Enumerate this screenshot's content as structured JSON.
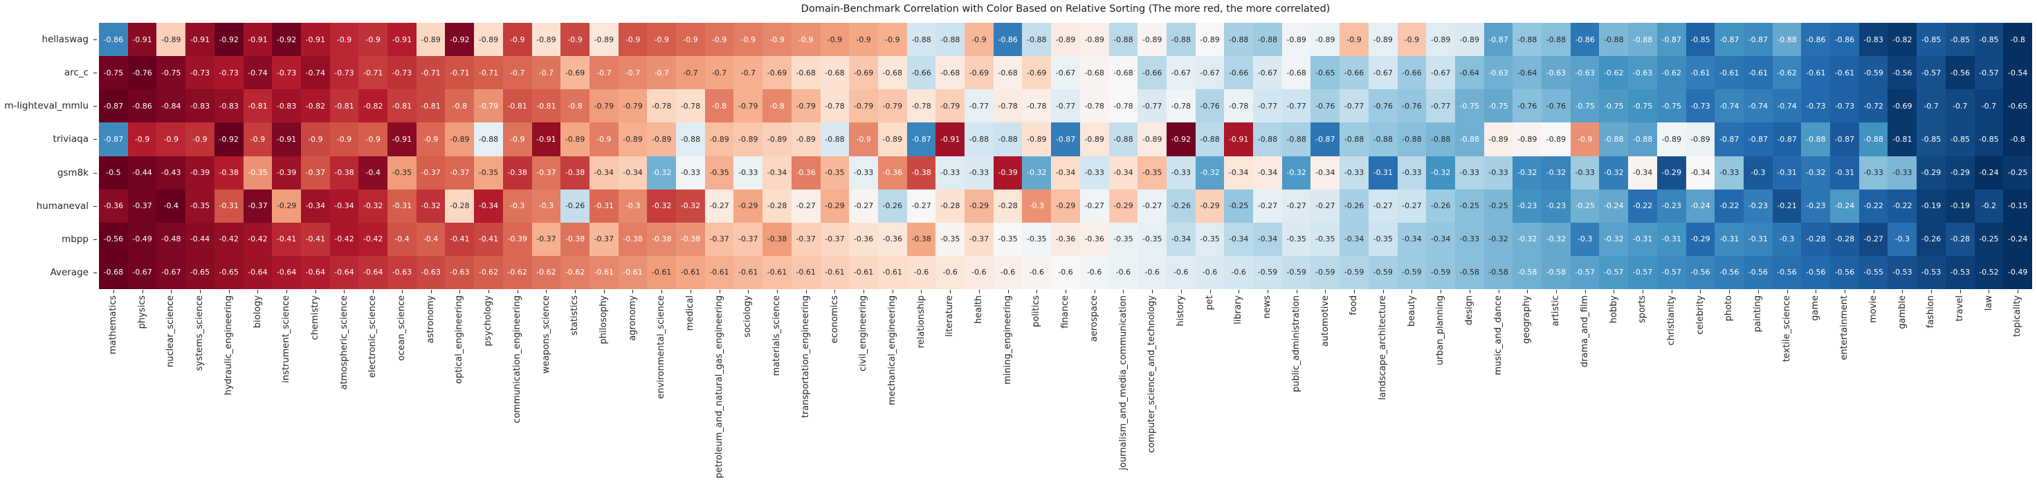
{
  "title": "Domain-Benchmark Correlation with Color Based on Relative Sorting (The more red, the more correlated)",
  "colors": {
    "background": "#ffffff",
    "text_dark": "#262626",
    "text_light": "#ffffff",
    "rdbu_anchors": [
      "#67001f",
      "#b2182b",
      "#d6604d",
      "#f4a582",
      "#fddbc7",
      "#f7f7f7",
      "#d1e5f0",
      "#92c5de",
      "#4393c3",
      "#2166ac",
      "#053061"
    ],
    "color_rule": "per-row rank-based RdBu: most negative correlation = darkest red, least negative = darkest blue"
  },
  "chart_data": {
    "type": "heatmap",
    "title": "Domain-Benchmark Correlation with Color Based on Relative Sorting (The more red, the more correlated)",
    "xlabel": "",
    "ylabel": "",
    "grid": false,
    "legend": false,
    "x_tick_rotation": 90,
    "value_range": [
      -0.92,
      -0.15
    ],
    "rows": [
      "hellaswag",
      "arc_c",
      "m-lighteval_mmlu",
      "triviaqa",
      "gsm8k",
      "humaneval",
      "mbpp",
      "Average"
    ],
    "columns": [
      "mathematics",
      "physics",
      "nuclear_science",
      "systems_science",
      "hydraulic_engineering",
      "biology",
      "instrument_science",
      "chemistry",
      "atmospheric_science",
      "electronic_science",
      "ocean_science",
      "astronomy",
      "optical_engineering",
      "psychology",
      "communication_engineering",
      "weapons_science",
      "statistics",
      "philosophy",
      "agronomy",
      "environmental_science",
      "medical",
      "petroleum_and_natural_gas_engineering",
      "sociology",
      "materials_science",
      "transportation_engineering",
      "economics",
      "civil_engineering",
      "mechanical_engineering",
      "relationship",
      "literature",
      "health",
      "mining_engineering",
      "politics",
      "finance",
      "aerospace",
      "journalism_and_media_communication",
      "computer_science_and_technology",
      "history",
      "pet",
      "library",
      "news",
      "public_administration",
      "automotive",
      "food",
      "landscape_architecture",
      "beauty",
      "urban_planning",
      "design",
      "music_and_dance",
      "geography",
      "artistic",
      "drama_and_film",
      "hobby",
      "sports",
      "christianity",
      "celebrity",
      "photo",
      "painting",
      "textile_science",
      "game",
      "entertainment",
      "movie",
      "gamble",
      "fashion",
      "travel",
      "law",
      "topicality"
    ],
    "values": [
      [
        -0.86,
        -0.91,
        -0.89,
        -0.91,
        -0.92,
        -0.91,
        -0.92,
        -0.91,
        -0.9,
        -0.9,
        -0.91,
        -0.89,
        -0.92,
        -0.89,
        -0.9,
        -0.89,
        -0.9,
        -0.89,
        -0.9,
        -0.9,
        -0.9,
        -0.9,
        -0.9,
        -0.9,
        -0.9,
        -0.9,
        -0.9,
        -0.9,
        -0.88,
        -0.88,
        -0.9,
        -0.86,
        -0.88,
        -0.89,
        -0.89,
        -0.88,
        -0.89,
        -0.88,
        -0.89,
        -0.88,
        -0.88,
        -0.89,
        -0.89,
        -0.9,
        -0.89,
        -0.9,
        -0.89,
        -0.89,
        -0.87,
        -0.88,
        -0.88,
        -0.86,
        -0.88,
        -0.88,
        -0.87,
        -0.85,
        -0.87,
        -0.87,
        -0.88,
        -0.86,
        -0.86,
        -0.83,
        -0.82,
        -0.85,
        -0.85,
        -0.85,
        -0.8
      ],
      [
        -0.75,
        -0.76,
        -0.75,
        -0.73,
        -0.73,
        -0.74,
        -0.73,
        -0.74,
        -0.73,
        -0.71,
        -0.73,
        -0.71,
        -0.71,
        -0.71,
        -0.7,
        -0.7,
        -0.69,
        -0.7,
        -0.7,
        -0.7,
        -0.7,
        -0.7,
        -0.7,
        -0.69,
        -0.68,
        -0.68,
        -0.69,
        -0.68,
        -0.66,
        -0.68,
        -0.69,
        -0.68,
        -0.69,
        -0.67,
        -0.68,
        -0.68,
        -0.66,
        -0.67,
        -0.67,
        -0.66,
        -0.67,
        -0.68,
        -0.65,
        -0.66,
        -0.67,
        -0.66,
        -0.67,
        -0.64,
        -0.63,
        -0.64,
        -0.63,
        -0.63,
        -0.62,
        -0.63,
        -0.62,
        -0.61,
        -0.61,
        -0.61,
        -0.62,
        -0.61,
        -0.61,
        -0.59,
        -0.56,
        -0.57,
        -0.56,
        -0.57,
        -0.54
      ],
      [
        -0.87,
        -0.86,
        -0.84,
        -0.83,
        -0.83,
        -0.81,
        -0.83,
        -0.82,
        -0.81,
        -0.82,
        -0.81,
        -0.81,
        -0.8,
        -0.79,
        -0.81,
        -0.81,
        -0.8,
        -0.79,
        -0.79,
        -0.78,
        -0.78,
        -0.8,
        -0.79,
        -0.8,
        -0.79,
        -0.78,
        -0.79,
        -0.79,
        -0.78,
        -0.79,
        -0.77,
        -0.78,
        -0.78,
        -0.77,
        -0.78,
        -0.78,
        -0.77,
        -0.78,
        -0.76,
        -0.78,
        -0.77,
        -0.77,
        -0.76,
        -0.77,
        -0.76,
        -0.76,
        -0.77,
        -0.75,
        -0.75,
        -0.76,
        -0.76,
        -0.75,
        -0.75,
        -0.75,
        -0.75,
        -0.73,
        -0.74,
        -0.74,
        -0.74,
        -0.73,
        -0.73,
        -0.72,
        -0.69,
        -0.7,
        -0.7,
        -0.7,
        -0.65
      ],
      [
        -0.87,
        -0.9,
        -0.9,
        -0.9,
        -0.92,
        -0.9,
        -0.91,
        -0.9,
        -0.9,
        -0.9,
        -0.91,
        -0.9,
        -0.89,
        -0.88,
        -0.9,
        -0.91,
        -0.89,
        -0.9,
        -0.89,
        -0.89,
        -0.88,
        -0.89,
        -0.89,
        -0.89,
        -0.89,
        -0.88,
        -0.9,
        -0.89,
        -0.87,
        -0.91,
        -0.88,
        -0.88,
        -0.89,
        -0.87,
        -0.89,
        -0.88,
        -0.89,
        -0.92,
        -0.88,
        -0.91,
        -0.88,
        -0.88,
        -0.87,
        -0.88,
        -0.88,
        -0.88,
        -0.88,
        -0.88,
        -0.89,
        -0.89,
        -0.89,
        -0.9,
        -0.88,
        -0.88,
        -0.89,
        -0.89,
        -0.87,
        -0.87,
        -0.87,
        -0.88,
        -0.87,
        -0.88,
        -0.81,
        -0.85,
        -0.85,
        -0.85,
        -0.8
      ],
      [
        -0.5,
        -0.44,
        -0.43,
        -0.39,
        -0.38,
        -0.35,
        -0.39,
        -0.37,
        -0.38,
        -0.4,
        -0.35,
        -0.37,
        -0.37,
        -0.35,
        -0.38,
        -0.37,
        -0.38,
        -0.34,
        -0.34,
        -0.32,
        -0.33,
        -0.35,
        -0.33,
        -0.34,
        -0.36,
        -0.35,
        -0.33,
        -0.36,
        -0.38,
        -0.33,
        -0.33,
        -0.39,
        -0.32,
        -0.34,
        -0.33,
        -0.34,
        -0.35,
        -0.33,
        -0.32,
        -0.34,
        -0.34,
        -0.32,
        -0.34,
        -0.33,
        -0.31,
        -0.33,
        -0.32,
        -0.33,
        -0.33,
        -0.32,
        -0.32,
        -0.33,
        -0.32,
        -0.34,
        -0.29,
        -0.34,
        -0.33,
        -0.3,
        -0.31,
        -0.32,
        -0.31,
        -0.33,
        -0.33,
        -0.29,
        -0.29,
        -0.24,
        -0.25
      ],
      [
        -0.36,
        -0.37,
        -0.4,
        -0.35,
        -0.31,
        -0.37,
        -0.29,
        -0.34,
        -0.34,
        -0.32,
        -0.31,
        -0.32,
        -0.28,
        -0.34,
        -0.3,
        -0.3,
        -0.26,
        -0.31,
        -0.3,
        -0.32,
        -0.32,
        -0.27,
        -0.29,
        -0.28,
        -0.27,
        -0.29,
        -0.27,
        -0.26,
        -0.27,
        -0.28,
        -0.29,
        -0.28,
        -0.3,
        -0.29,
        -0.27,
        -0.29,
        -0.27,
        -0.26,
        -0.29,
        -0.25,
        -0.27,
        -0.27,
        -0.27,
        -0.26,
        -0.27,
        -0.27,
        -0.26,
        -0.25,
        -0.25,
        -0.23,
        -0.23,
        -0.25,
        -0.24,
        -0.22,
        -0.23,
        -0.24,
        -0.22,
        -0.23,
        -0.21,
        -0.23,
        -0.24,
        -0.22,
        -0.22,
        -0.19,
        -0.19,
        -0.2,
        -0.15
      ],
      [
        -0.56,
        -0.49,
        -0.48,
        -0.44,
        -0.42,
        -0.42,
        -0.41,
        -0.41,
        -0.42,
        -0.42,
        -0.4,
        -0.4,
        -0.41,
        -0.41,
        -0.39,
        -0.37,
        -0.38,
        -0.37,
        -0.38,
        -0.38,
        -0.38,
        -0.37,
        -0.37,
        -0.38,
        -0.37,
        -0.37,
        -0.36,
        -0.36,
        -0.38,
        -0.35,
        -0.37,
        -0.35,
        -0.35,
        -0.36,
        -0.36,
        -0.35,
        -0.35,
        -0.34,
        -0.35,
        -0.34,
        -0.34,
        -0.35,
        -0.35,
        -0.34,
        -0.35,
        -0.34,
        -0.34,
        -0.33,
        -0.32,
        -0.32,
        -0.32,
        -0.3,
        -0.32,
        -0.31,
        -0.31,
        -0.29,
        -0.31,
        -0.31,
        -0.3,
        -0.28,
        -0.28,
        -0.27,
        -0.3,
        -0.26,
        -0.28,
        -0.25,
        -0.24
      ],
      [
        -0.68,
        -0.67,
        -0.67,
        -0.65,
        -0.65,
        -0.64,
        -0.64,
        -0.64,
        -0.64,
        -0.64,
        -0.63,
        -0.63,
        -0.63,
        -0.62,
        -0.62,
        -0.62,
        -0.62,
        -0.61,
        -0.61,
        -0.61,
        -0.61,
        -0.61,
        -0.61,
        -0.61,
        -0.61,
        -0.61,
        -0.61,
        -0.61,
        -0.6,
        -0.6,
        -0.6,
        -0.6,
        -0.6,
        -0.6,
        -0.6,
        -0.6,
        -0.6,
        -0.6,
        -0.6,
        -0.6,
        -0.59,
        -0.59,
        -0.59,
        -0.59,
        -0.59,
        -0.59,
        -0.59,
        -0.58,
        -0.58,
        -0.58,
        -0.58,
        -0.57,
        -0.57,
        -0.57,
        -0.57,
        -0.56,
        -0.56,
        -0.56,
        -0.56,
        -0.56,
        -0.56,
        -0.55,
        -0.53,
        -0.53,
        -0.53,
        -0.52,
        -0.49
      ]
    ]
  }
}
